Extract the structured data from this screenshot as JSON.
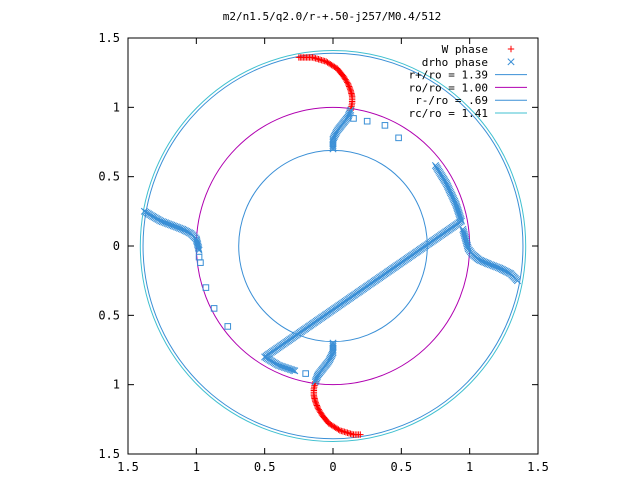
{
  "chart_data": {
    "type": "scatter",
    "title": "m2/n1.5/q2.0/r-+.50-j257/M0.4/512",
    "xlabel": "",
    "ylabel": "",
    "xlim": [
      -1.5,
      1.5
    ],
    "ylim": [
      -1.5,
      1.5
    ],
    "x_tick_values": [
      -1.5,
      -1,
      -0.5,
      0,
      0.5,
      1,
      1.5
    ],
    "x_tick_labels": [
      "1.5",
      "1",
      "0.5",
      "0",
      "0.5",
      "1",
      "1.5"
    ],
    "y_tick_values": [
      1.5,
      1,
      0.5,
      0,
      -0.5,
      -1,
      -1.5
    ],
    "y_tick_labels": [
      "1.5",
      "1",
      "0.5",
      "0",
      "0.5",
      "1",
      "1.5"
    ],
    "grid": false,
    "legend_position": "top-right",
    "circles": [
      {
        "name": "r+/ro = 1.39",
        "radius": 1.39,
        "color": "#3a8fd6"
      },
      {
        "name": "ro/ro = 1.00",
        "radius": 1.0,
        "color": "#b000b0"
      },
      {
        "name": "r-/ro = .69",
        "radius": 0.69,
        "color": "#3a8fd6"
      },
      {
        "name": "rc/ro = 1.41",
        "radius": 1.41,
        "color": "#40c0d0"
      }
    ],
    "series": [
      {
        "name": "W phase",
        "marker": "plus",
        "color": "#ff0000",
        "arms": [
          [
            [
              -0.25,
              1.36
            ],
            [
              -0.15,
              1.36
            ],
            [
              -0.05,
              1.33
            ],
            [
              0.03,
              1.28
            ],
            [
              0.08,
              1.22
            ],
            [
              0.11,
              1.17
            ],
            [
              0.13,
              1.12
            ],
            [
              0.14,
              1.08
            ],
            [
              0.14,
              1.03
            ],
            [
              0.13,
              0.98
            ]
          ],
          [
            [
              0.2,
              -1.36
            ],
            [
              0.15,
              -1.36
            ],
            [
              0.05,
              -1.33
            ],
            [
              -0.03,
              -1.28
            ],
            [
              -0.08,
              -1.22
            ],
            [
              -0.11,
              -1.17
            ],
            [
              -0.13,
              -1.12
            ],
            [
              -0.14,
              -1.08
            ],
            [
              -0.14,
              -1.03
            ],
            [
              -0.13,
              -0.98
            ]
          ]
        ]
      },
      {
        "name": "drho phase",
        "marker": "x",
        "color": "#3a8fd6",
        "arms": [
          [
            [
              0.13,
              0.98
            ],
            [
              0.11,
              0.93
            ],
            [
              0.07,
              0.88
            ],
            [
              0.03,
              0.83
            ],
            [
              0.0,
              0.77
            ],
            [
              0.0,
              0.7
            ]
          ],
          [
            [
              -0.13,
              -0.98
            ],
            [
              -0.11,
              -0.93
            ],
            [
              -0.07,
              -0.88
            ],
            [
              -0.03,
              -0.83
            ],
            [
              0.0,
              -0.77
            ],
            [
              0.0,
              -0.7
            ]
          ],
          [
            [
              -1.38,
              0.25
            ],
            [
              -1.33,
              0.22
            ],
            [
              -1.26,
              0.18
            ],
            [
              -1.18,
              0.15
            ],
            [
              -1.1,
              0.12
            ],
            [
              -1.04,
              0.09
            ],
            [
              -1.0,
              0.05
            ],
            [
              -0.99,
              0.01
            ],
            [
              -0.98,
              -0.03
            ]
          ],
          [
            [
              1.35,
              -0.25
            ],
            [
              1.3,
              -0.2
            ],
            [
              1.22,
              -0.16
            ],
            [
              1.14,
              -0.13
            ],
            [
              1.07,
              -0.1
            ],
            [
              1.02,
              -0.06
            ],
            [
              0.99,
              -0.02
            ],
            [
              0.97,
              0.05
            ],
            [
              0.95,
              0.12
            ]
          ],
          [
            [
              0.75,
              0.58
            ],
            [
              0.83,
              0.45
            ],
            [
              0.9,
              0.3
            ],
            [
              0.94,
              0.18
            ],
            [
              -0.5,
              -0.8
            ],
            [
              -0.4,
              -0.86
            ],
            [
              -0.28,
              -0.9
            ]
          ]
        ]
      },
      {
        "name": "",
        "marker": "square",
        "color": "#3a8fd6",
        "points": [
          [
            0.15,
            0.92
          ],
          [
            0.25,
            0.9
          ],
          [
            0.38,
            0.87
          ],
          [
            0.48,
            0.78
          ],
          [
            -0.2,
            -0.92
          ],
          [
            -0.98,
            -0.08
          ],
          [
            -0.97,
            -0.12
          ],
          [
            -0.93,
            -0.3
          ],
          [
            -0.87,
            -0.45
          ],
          [
            -0.77,
            -0.58
          ]
        ]
      }
    ]
  }
}
